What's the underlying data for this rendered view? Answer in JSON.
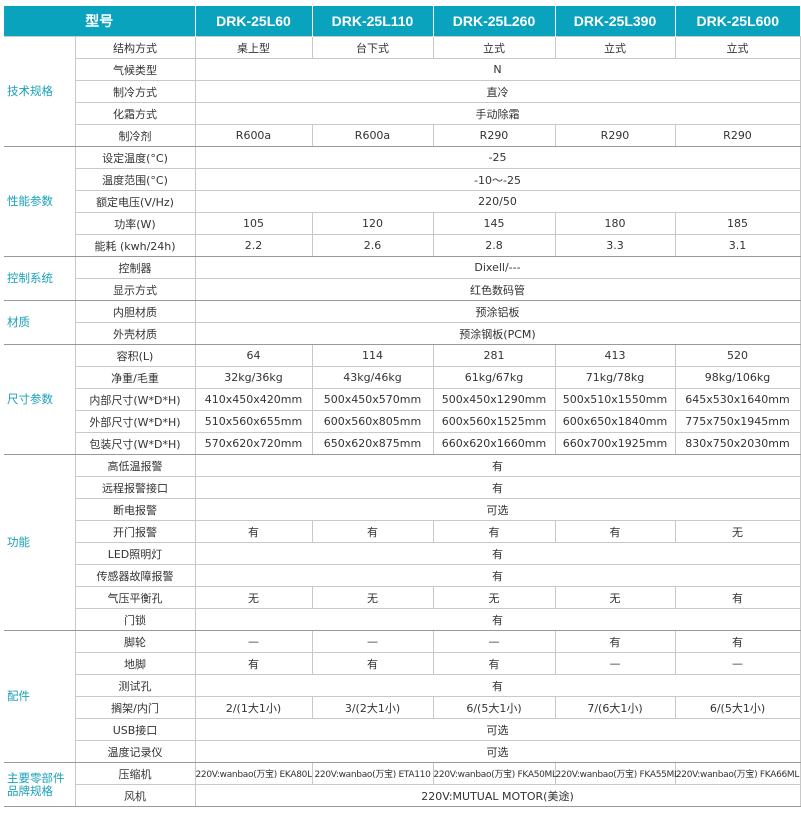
{
  "colors": {
    "header": "#0aa3bd",
    "category_text": "#1aa0b8"
  },
  "header": {
    "label": "型号",
    "models": [
      "DRK-25L60",
      "DRK-25L110",
      "DRK-25L260",
      "DRK-25L390",
      "DRK-25L600"
    ]
  },
  "sections": [
    {
      "name": "技术规格",
      "rows": [
        {
          "param": "结构方式",
          "values": [
            "桌上型",
            "台下式",
            "立式",
            "立式",
            "立式"
          ]
        },
        {
          "param": "气候类型",
          "all": "N"
        },
        {
          "param": "制冷方式",
          "all": "直冷"
        },
        {
          "param": "化霜方式",
          "all": "手动除霜"
        },
        {
          "param": "制冷剂",
          "values": [
            "R600a",
            "R600a",
            "R290",
            "R290",
            "R290"
          ]
        }
      ]
    },
    {
      "name": "性能参数",
      "rows": [
        {
          "param": "设定温度(°C)",
          "all": "-25"
        },
        {
          "param": "温度范围(°C)",
          "all": "-10～-25"
        },
        {
          "param": "额定电压(V/Hz)",
          "all": "220/50"
        },
        {
          "param": "功率(W)",
          "values": [
            "105",
            "120",
            "145",
            "180",
            "185"
          ]
        },
        {
          "param": "能耗 (kwh/24h)",
          "values": [
            "2.2",
            "2.6",
            "2.8",
            "3.3",
            "3.1"
          ]
        }
      ]
    },
    {
      "name": "控制系统",
      "rows": [
        {
          "param": "控制器",
          "all": "Dixell/---"
        },
        {
          "param": "显示方式",
          "all": "红色数码管"
        }
      ]
    },
    {
      "name": "材质",
      "rows": [
        {
          "param": "内胆材质",
          "all": "预涂铝板"
        },
        {
          "param": "外壳材质",
          "all": "预涂钢板(PCM)"
        }
      ]
    },
    {
      "name": "尺寸参数",
      "rows": [
        {
          "param": "容积(L)",
          "values": [
            "64",
            "114",
            "281",
            "413",
            "520"
          ]
        },
        {
          "param": "净重/毛重",
          "values": [
            "32kg/36kg",
            "43kg/46kg",
            "61kg/67kg",
            "71kg/78kg",
            "98kg/106kg"
          ]
        },
        {
          "param": "内部尺寸(W*D*H)",
          "values": [
            "410x450x420mm",
            "500x450x570mm",
            "500x450x1290mm",
            "500x510x1550mm",
            "645x530x1640mm"
          ]
        },
        {
          "param": "外部尺寸(W*D*H)",
          "values": [
            "510x560x655mm",
            "600x560x805mm",
            "600x560x1525mm",
            "600x650x1840mm",
            "775x750x1945mm"
          ]
        },
        {
          "param": "包装尺寸(W*D*H)",
          "values": [
            "570x620x720mm",
            "650x620x875mm",
            "660x620x1660mm",
            "660x700x1925mm",
            "830x750x2030mm"
          ]
        }
      ]
    },
    {
      "name": "功能",
      "rows": [
        {
          "param": "高低温报警",
          "all": "有"
        },
        {
          "param": "远程报警接口",
          "all": "有"
        },
        {
          "param": "断电报警",
          "all": "可选"
        },
        {
          "param": "开门报警",
          "values": [
            "有",
            "有",
            "有",
            "有",
            "无"
          ]
        },
        {
          "param": "LED照明灯",
          "all": "有"
        },
        {
          "param": "传感器故障报警",
          "all": "有"
        },
        {
          "param": "气压平衡孔",
          "values": [
            "无",
            "无",
            "无",
            "无",
            "有"
          ]
        },
        {
          "param": "门锁",
          "all": "有"
        }
      ]
    },
    {
      "name": "配件",
      "rows": [
        {
          "param": "脚轮",
          "values": [
            "—",
            "—",
            "—",
            "有",
            "有"
          ]
        },
        {
          "param": "地脚",
          "values": [
            "有",
            "有",
            "有",
            "—",
            "—"
          ]
        },
        {
          "param": "测试孔",
          "all": "有"
        },
        {
          "param": "搁架/内门",
          "values": [
            "2/(1大1小)",
            "3/(2大1小)",
            "6/(5大1小)",
            "7/(6大1小)",
            "6/(5大1小)"
          ]
        },
        {
          "param": "USB接口",
          "all": "可选"
        },
        {
          "param": "温度记录仪",
          "all": "可选"
        }
      ]
    },
    {
      "name": "主要零部件品牌规格",
      "rows": [
        {
          "param": "压缩机",
          "small": true,
          "values": [
            "220V:wanbao(万宝) EKA80L",
            "220V:wanbao(万宝) ETA110",
            "220V:wanbao(万宝) FKA50ML",
            "220V:wanbao(万宝) FKA55ML",
            "220V:wanbao(万宝) FKA66ML"
          ]
        },
        {
          "param": "风机",
          "all": "220V:MUTUAL MOTOR(美途)"
        }
      ]
    }
  ]
}
